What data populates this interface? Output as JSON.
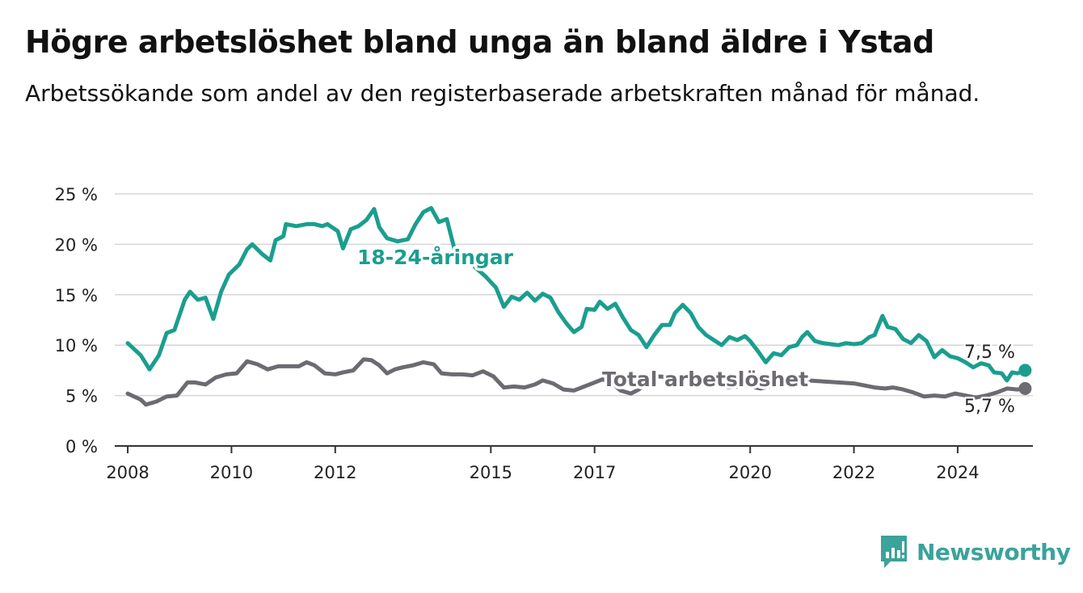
{
  "header": {
    "title": "Högre arbetslöshet bland unga än bland äldre i Ystad",
    "subtitle": "Arbetssökande som andel av den registerbaserade arbetskraften månad för månad."
  },
  "brand": {
    "name": "Newsworthy",
    "icon": "newsworthy-chart-icon",
    "color": "#3aa39a"
  },
  "chart_data": {
    "type": "line",
    "title": "Högre arbetslöshet bland unga än bland äldre i Ystad",
    "subtitle": "Arbetssökande som andel av den registerbaserade arbetskraften månad för månad.",
    "xlabel": "",
    "ylabel": "",
    "x_ticks": [
      2008,
      2010,
      2012,
      2015,
      2017,
      2020,
      2022,
      2024
    ],
    "x_tick_labels": [
      "2008",
      "2010",
      "2012",
      "2015",
      "2017",
      "2020",
      "2022",
      "2024"
    ],
    "xlim": [
      2007.75,
      2025.45
    ],
    "ylim": [
      0,
      25
    ],
    "y_ticks": [
      0,
      5,
      10,
      15,
      20,
      25
    ],
    "y_tick_labels": [
      "0 %",
      "5 %",
      "10 %",
      "15 %",
      "20 %",
      "25 %"
    ],
    "grid": "horizontal",
    "legend": "inline labels",
    "series": [
      {
        "name": "18-24-åringar",
        "color": "#1a9e8f",
        "end_value_label": "7,5 %",
        "points": [
          [
            2008.0,
            10.2
          ],
          [
            2008.25,
            9.0
          ],
          [
            2008.42,
            7.6
          ],
          [
            2008.6,
            9.0
          ],
          [
            2008.75,
            11.2
          ],
          [
            2008.9,
            11.5
          ],
          [
            2009.1,
            14.5
          ],
          [
            2009.2,
            15.3
          ],
          [
            2009.35,
            14.5
          ],
          [
            2009.5,
            14.7
          ],
          [
            2009.65,
            12.6
          ],
          [
            2009.8,
            15.3
          ],
          [
            2009.95,
            17.0
          ],
          [
            2010.15,
            18.0
          ],
          [
            2010.3,
            19.5
          ],
          [
            2010.4,
            20.0
          ],
          [
            2010.6,
            19.0
          ],
          [
            2010.75,
            18.4
          ],
          [
            2010.85,
            20.4
          ],
          [
            2011.0,
            20.8
          ],
          [
            2011.05,
            22.0
          ],
          [
            2011.25,
            21.8
          ],
          [
            2011.45,
            22.0
          ],
          [
            2011.6,
            22.0
          ],
          [
            2011.75,
            21.8
          ],
          [
            2011.85,
            22.0
          ],
          [
            2012.05,
            21.3
          ],
          [
            2012.15,
            19.6
          ],
          [
            2012.3,
            21.5
          ],
          [
            2012.45,
            21.8
          ],
          [
            2012.6,
            22.4
          ],
          [
            2012.75,
            23.5
          ],
          [
            2012.85,
            21.7
          ],
          [
            2013.0,
            20.6
          ],
          [
            2013.2,
            20.3
          ],
          [
            2013.4,
            20.5
          ],
          [
            2013.55,
            22.0
          ],
          [
            2013.7,
            23.2
          ],
          [
            2013.85,
            23.6
          ],
          [
            2014.0,
            22.2
          ],
          [
            2014.15,
            22.5
          ],
          [
            2014.3,
            19.5
          ],
          [
            2014.5,
            19.0
          ],
          [
            2014.7,
            17.7
          ],
          [
            2014.9,
            16.8
          ],
          [
            2015.1,
            15.7
          ],
          [
            2015.25,
            13.8
          ],
          [
            2015.4,
            14.8
          ],
          [
            2015.55,
            14.5
          ],
          [
            2015.7,
            15.2
          ],
          [
            2015.85,
            14.4
          ],
          [
            2016.0,
            15.1
          ],
          [
            2016.15,
            14.7
          ],
          [
            2016.3,
            13.3
          ],
          [
            2016.45,
            12.2
          ],
          [
            2016.6,
            11.3
          ],
          [
            2016.75,
            11.8
          ],
          [
            2016.85,
            13.6
          ],
          [
            2017.0,
            13.5
          ],
          [
            2017.1,
            14.3
          ],
          [
            2017.25,
            13.6
          ],
          [
            2017.4,
            14.1
          ],
          [
            2017.55,
            12.7
          ],
          [
            2017.7,
            11.5
          ],
          [
            2017.85,
            11.0
          ],
          [
            2018.0,
            9.8
          ],
          [
            2018.15,
            11.0
          ],
          [
            2018.3,
            12.0
          ],
          [
            2018.45,
            12.0
          ],
          [
            2018.55,
            13.2
          ],
          [
            2018.7,
            14.0
          ],
          [
            2018.85,
            13.2
          ],
          [
            2019.0,
            11.8
          ],
          [
            2019.15,
            11.0
          ],
          [
            2019.3,
            10.5
          ],
          [
            2019.45,
            10.0
          ],
          [
            2019.6,
            10.8
          ],
          [
            2019.75,
            10.5
          ],
          [
            2019.9,
            10.9
          ],
          [
            2020.0,
            10.4
          ],
          [
            2020.15,
            9.4
          ],
          [
            2020.3,
            8.3
          ],
          [
            2020.45,
            9.2
          ],
          [
            2020.6,
            9.0
          ],
          [
            2020.75,
            9.8
          ],
          [
            2020.9,
            10.0
          ],
          [
            2021.0,
            10.8
          ],
          [
            2021.1,
            11.3
          ],
          [
            2021.25,
            10.4
          ],
          [
            2021.4,
            10.2
          ],
          [
            2021.55,
            10.1
          ],
          [
            2021.7,
            10.0
          ],
          [
            2021.85,
            10.2
          ],
          [
            2022.0,
            10.1
          ],
          [
            2022.15,
            10.2
          ],
          [
            2022.3,
            10.8
          ],
          [
            2022.4,
            11.0
          ],
          [
            2022.55,
            12.9
          ],
          [
            2022.65,
            11.8
          ],
          [
            2022.8,
            11.6
          ],
          [
            2022.95,
            10.6
          ],
          [
            2023.1,
            10.2
          ],
          [
            2023.25,
            11.0
          ],
          [
            2023.4,
            10.4
          ],
          [
            2023.55,
            8.8
          ],
          [
            2023.7,
            9.5
          ],
          [
            2023.85,
            8.9
          ],
          [
            2024.0,
            8.7
          ],
          [
            2024.15,
            8.3
          ],
          [
            2024.3,
            7.8
          ],
          [
            2024.45,
            8.2
          ],
          [
            2024.6,
            8.0
          ],
          [
            2024.7,
            7.3
          ],
          [
            2024.85,
            7.2
          ],
          [
            2024.95,
            6.5
          ],
          [
            2025.05,
            7.3
          ],
          [
            2025.15,
            7.2
          ],
          [
            2025.3,
            7.5
          ]
        ]
      },
      {
        "name": "Total arbetslöshet",
        "color": "#6e6a72",
        "end_value_label": "5,7 %",
        "points": [
          [
            2008.0,
            5.2
          ],
          [
            2008.25,
            4.6
          ],
          [
            2008.35,
            4.1
          ],
          [
            2008.55,
            4.4
          ],
          [
            2008.75,
            4.9
          ],
          [
            2008.95,
            5.0
          ],
          [
            2009.15,
            6.3
          ],
          [
            2009.3,
            6.3
          ],
          [
            2009.5,
            6.1
          ],
          [
            2009.7,
            6.8
          ],
          [
            2009.9,
            7.1
          ],
          [
            2010.1,
            7.2
          ],
          [
            2010.3,
            8.4
          ],
          [
            2010.5,
            8.1
          ],
          [
            2010.7,
            7.6
          ],
          [
            2010.9,
            7.9
          ],
          [
            2011.1,
            7.9
          ],
          [
            2011.3,
            7.9
          ],
          [
            2011.45,
            8.3
          ],
          [
            2011.6,
            8.0
          ],
          [
            2011.8,
            7.2
          ],
          [
            2012.0,
            7.1
          ],
          [
            2012.15,
            7.3
          ],
          [
            2012.35,
            7.5
          ],
          [
            2012.55,
            8.6
          ],
          [
            2012.7,
            8.5
          ],
          [
            2012.85,
            8.0
          ],
          [
            2013.0,
            7.2
          ],
          [
            2013.15,
            7.6
          ],
          [
            2013.3,
            7.8
          ],
          [
            2013.5,
            8.0
          ],
          [
            2013.7,
            8.3
          ],
          [
            2013.9,
            8.1
          ],
          [
            2014.05,
            7.2
          ],
          [
            2014.25,
            7.1
          ],
          [
            2014.45,
            7.1
          ],
          [
            2014.65,
            7.0
          ],
          [
            2014.85,
            7.4
          ],
          [
            2015.05,
            6.9
          ],
          [
            2015.25,
            5.8
          ],
          [
            2015.45,
            5.9
          ],
          [
            2015.65,
            5.8
          ],
          [
            2015.85,
            6.1
          ],
          [
            2016.0,
            6.5
          ],
          [
            2016.2,
            6.2
          ],
          [
            2016.4,
            5.6
          ],
          [
            2016.6,
            5.5
          ],
          [
            2016.8,
            5.9
          ],
          [
            2017.0,
            6.3
          ],
          [
            2017.15,
            6.6
          ],
          [
            2017.3,
            6.4
          ],
          [
            2017.5,
            5.5
          ],
          [
            2017.7,
            5.2
          ],
          [
            2017.85,
            5.6
          ],
          [
            2018.0,
            6.2
          ],
          [
            2018.2,
            6.9
          ],
          [
            2018.5,
            6.8
          ],
          [
            2018.8,
            6.9
          ],
          [
            2019.0,
            6.5
          ],
          [
            2019.3,
            6.2
          ],
          [
            2019.6,
            5.8
          ],
          [
            2019.9,
            6.0
          ],
          [
            2020.2,
            5.7
          ],
          [
            2020.5,
            6.1
          ],
          [
            2020.8,
            6.3
          ],
          [
            2021.1,
            6.5
          ],
          [
            2021.4,
            6.4
          ],
          [
            2021.7,
            6.3
          ],
          [
            2022.0,
            6.2
          ],
          [
            2022.2,
            6.0
          ],
          [
            2022.4,
            5.8
          ],
          [
            2022.6,
            5.7
          ],
          [
            2022.75,
            5.8
          ],
          [
            2022.95,
            5.6
          ],
          [
            2023.15,
            5.3
          ],
          [
            2023.35,
            4.9
          ],
          [
            2023.55,
            5.0
          ],
          [
            2023.75,
            4.9
          ],
          [
            2023.95,
            5.2
          ],
          [
            2024.15,
            5.0
          ],
          [
            2024.35,
            4.8
          ],
          [
            2024.55,
            5.0
          ],
          [
            2024.75,
            5.3
          ],
          [
            2024.95,
            5.7
          ],
          [
            2025.15,
            5.6
          ],
          [
            2025.3,
            5.7
          ]
        ]
      }
    ]
  }
}
